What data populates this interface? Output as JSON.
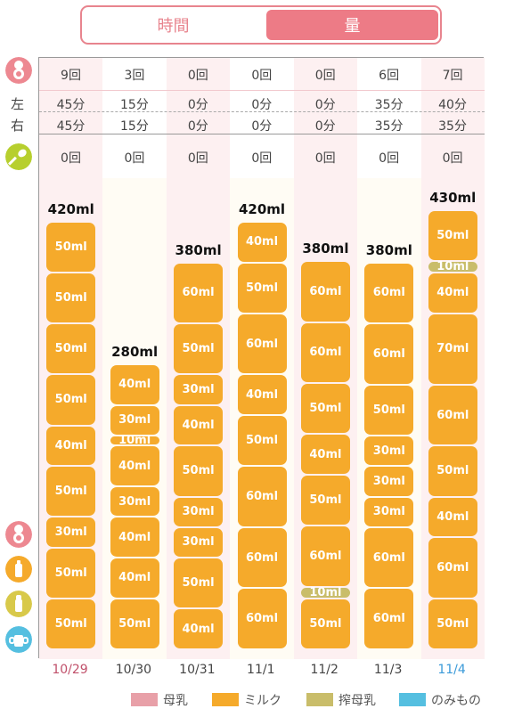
{
  "toggle": {
    "left": "時間",
    "right": "量"
  },
  "side_labels": {
    "left": "左",
    "right": "右"
  },
  "icons": {
    "top": "mother-icon",
    "spoon": "spoon-icon",
    "legend1": "mother-icon",
    "legend2": "bottle-icon",
    "legend3": "pump-bottle-icon",
    "legend4": "cup-icon"
  },
  "rows": {
    "counts": [
      "9回",
      "3回",
      "0回",
      "0回",
      "0回",
      "6回",
      "7回"
    ],
    "left": [
      "45分",
      "15分",
      "0分",
      "0分",
      "0分",
      "35分",
      "40分"
    ],
    "right": [
      "45分",
      "15分",
      "0分",
      "0分",
      "0分",
      "35分",
      "35分"
    ],
    "food": [
      "0回",
      "0回",
      "0回",
      "0回",
      "0回",
      "0回",
      "0回"
    ]
  },
  "colors": {
    "breast": "#e8a0a8",
    "milk": "#f5aa2b",
    "expressed": "#c9bd6a",
    "drink": "#55bfe0",
    "accent": "#ed7b86",
    "today": "#3a9ad9"
  },
  "chart_data": {
    "type": "bar",
    "stacked": true,
    "categories": [
      "10/29",
      "10/30",
      "10/31",
      "11/1",
      "11/2",
      "11/3",
      "11/4"
    ],
    "totals": [
      "420ml",
      "280ml",
      "380ml",
      "420ml",
      "380ml",
      "380ml",
      "430ml"
    ],
    "stacks": [
      [
        {
          "v": 50,
          "t": "milk"
        },
        {
          "v": 50,
          "t": "milk"
        },
        {
          "v": 30,
          "t": "milk"
        },
        {
          "v": 50,
          "t": "milk"
        },
        {
          "v": 40,
          "t": "milk"
        },
        {
          "v": 50,
          "t": "milk"
        },
        {
          "v": 50,
          "t": "milk"
        },
        {
          "v": 50,
          "t": "milk"
        },
        {
          "v": 50,
          "t": "milk"
        }
      ],
      [
        {
          "v": 50,
          "t": "milk"
        },
        {
          "v": 40,
          "t": "milk"
        },
        {
          "v": 40,
          "t": "milk"
        },
        {
          "v": 30,
          "t": "milk"
        },
        {
          "v": 40,
          "t": "milk"
        },
        {
          "v": 10,
          "t": "milk"
        },
        {
          "v": 30,
          "t": "milk"
        },
        {
          "v": 40,
          "t": "milk"
        }
      ],
      [
        {
          "v": 40,
          "t": "milk"
        },
        {
          "v": 50,
          "t": "milk"
        },
        {
          "v": 30,
          "t": "milk"
        },
        {
          "v": 30,
          "t": "milk"
        },
        {
          "v": 50,
          "t": "milk"
        },
        {
          "v": 40,
          "t": "milk"
        },
        {
          "v": 30,
          "t": "milk"
        },
        {
          "v": 50,
          "t": "milk"
        },
        {
          "v": 60,
          "t": "milk"
        }
      ],
      [
        {
          "v": 60,
          "t": "milk"
        },
        {
          "v": 60,
          "t": "milk"
        },
        {
          "v": 60,
          "t": "milk"
        },
        {
          "v": 50,
          "t": "milk"
        },
        {
          "v": 40,
          "t": "milk"
        },
        {
          "v": 60,
          "t": "milk"
        },
        {
          "v": 50,
          "t": "milk"
        },
        {
          "v": 40,
          "t": "milk"
        }
      ],
      [
        {
          "v": 50,
          "t": "milk"
        },
        {
          "v": 10,
          "t": "expressed"
        },
        {
          "v": 60,
          "t": "milk"
        },
        {
          "v": 50,
          "t": "milk"
        },
        {
          "v": 40,
          "t": "milk"
        },
        {
          "v": 50,
          "t": "milk"
        },
        {
          "v": 60,
          "t": "milk"
        },
        {
          "v": 60,
          "t": "milk"
        }
      ],
      [
        {
          "v": 60,
          "t": "milk"
        },
        {
          "v": 60,
          "t": "milk"
        },
        {
          "v": 30,
          "t": "milk"
        },
        {
          "v": 30,
          "t": "milk"
        },
        {
          "v": 30,
          "t": "milk"
        },
        {
          "v": 50,
          "t": "milk"
        },
        {
          "v": 60,
          "t": "milk"
        },
        {
          "v": 60,
          "t": "milk"
        }
      ],
      [
        {
          "v": 50,
          "t": "milk"
        },
        {
          "v": 60,
          "t": "milk"
        },
        {
          "v": 40,
          "t": "milk"
        },
        {
          "v": 50,
          "t": "milk"
        },
        {
          "v": 60,
          "t": "milk"
        },
        {
          "v": 70,
          "t": "milk"
        },
        {
          "v": 40,
          "t": "milk"
        },
        {
          "v": 10,
          "t": "expressed"
        },
        {
          "v": 50,
          "t": "milk"
        }
      ]
    ],
    "highlight_last_category": true,
    "legend": [
      {
        "name": "母乳",
        "type": "breast"
      },
      {
        "name": "ミルク",
        "type": "milk"
      },
      {
        "name": "搾母乳",
        "type": "expressed"
      },
      {
        "name": "のみもの",
        "type": "drink"
      }
    ]
  }
}
